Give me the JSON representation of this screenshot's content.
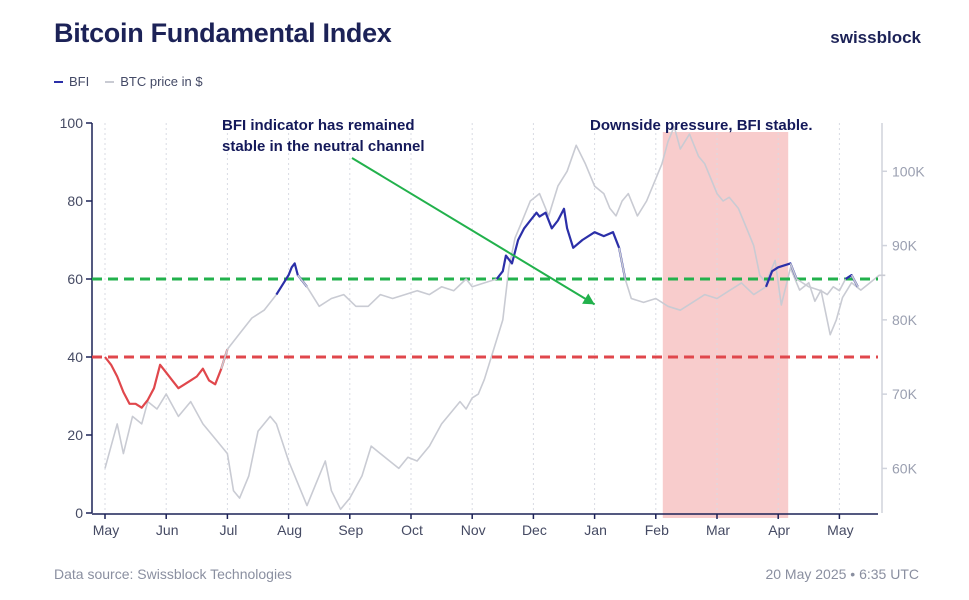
{
  "header": {
    "title": "Bitcoin Fundamental Index",
    "brand": "swissblock"
  },
  "legend": [
    {
      "label": "BFI",
      "color": "#2b2fa8"
    },
    {
      "label": "BTC price in $",
      "color": "#c9cbd3"
    }
  ],
  "footer": {
    "source": "Data source: Swissblock Technologies",
    "timestamp": "20 May 2025 • 6:35 UTC"
  },
  "colors": {
    "bfi_neutral": "#2b2fa8",
    "bfi_low": "#e0474c",
    "btc": "#c9cbd3",
    "upper_line": "#22b14c",
    "lower_line": "#e0474c",
    "shade": "#f7c3c3",
    "arrow": "#22b14c"
  },
  "chart_data": {
    "type": "line",
    "title": "Bitcoin Fundamental Index",
    "x_months": [
      "May",
      "Jun",
      "Jul",
      "Aug",
      "Sep",
      "Oct",
      "Nov",
      "Dec",
      "Jan",
      "Feb",
      "Mar",
      "Apr",
      "May"
    ],
    "x_range": [
      0,
      12.75
    ],
    "y_left": {
      "ticks": [
        0,
        20,
        40,
        60,
        80,
        100
      ],
      "range": [
        0,
        100
      ]
    },
    "y_right": {
      "ticks": [
        "60K",
        "70K",
        "80K",
        "90K",
        "100K"
      ],
      "tick_values": [
        60000,
        70000,
        80000,
        90000,
        100000
      ],
      "range": [
        54000,
        106500
      ]
    },
    "thresholds": [
      {
        "value": 60,
        "color": "#22b14c",
        "style": "dashed"
      },
      {
        "value": 40,
        "color": "#e0474c",
        "style": "dashed"
      }
    ],
    "shaded_region": {
      "x_start": 9.0,
      "x_end": 11.0,
      "label": "Downside pressure, BFI stable."
    },
    "annotations": [
      {
        "text_lines": [
          "BFI indicator has remained",
          "stable in the neutral channel"
        ],
        "arrow_from": [
          4.1,
          91
        ],
        "arrow_to": [
          8.0,
          53.5
        ]
      }
    ],
    "series": [
      {
        "name": "BFI",
        "axis": "left",
        "values": [
          [
            0.0,
            40
          ],
          [
            0.1,
            38
          ],
          [
            0.2,
            35
          ],
          [
            0.3,
            31
          ],
          [
            0.4,
            28
          ],
          [
            0.5,
            28
          ],
          [
            0.6,
            27
          ],
          [
            0.7,
            29
          ],
          [
            0.8,
            32
          ],
          [
            0.9,
            38
          ],
          [
            1.0,
            36
          ],
          [
            1.1,
            34
          ],
          [
            1.2,
            32
          ],
          [
            1.3,
            33
          ],
          [
            1.4,
            34
          ],
          [
            1.5,
            35
          ],
          [
            1.6,
            37
          ],
          [
            1.7,
            34
          ],
          [
            1.8,
            33
          ],
          [
            1.9,
            37
          ],
          [
            2.0,
            42
          ],
          [
            2.2,
            46
          ],
          [
            2.4,
            50
          ],
          [
            2.6,
            52
          ],
          [
            2.8,
            56
          ],
          [
            3.0,
            61
          ],
          [
            3.05,
            63
          ],
          [
            3.1,
            64
          ],
          [
            3.15,
            61
          ],
          [
            3.3,
            58
          ],
          [
            3.5,
            53
          ],
          [
            3.7,
            55
          ],
          [
            3.9,
            56
          ],
          [
            4.1,
            53
          ],
          [
            4.3,
            53
          ],
          [
            4.5,
            56
          ],
          [
            4.7,
            55
          ],
          [
            4.9,
            56
          ],
          [
            5.1,
            57
          ],
          [
            5.3,
            56
          ],
          [
            5.5,
            58
          ],
          [
            5.7,
            57
          ],
          [
            5.9,
            60
          ],
          [
            6.0,
            58
          ],
          [
            6.2,
            59
          ],
          [
            6.4,
            60
          ],
          [
            6.5,
            62
          ],
          [
            6.55,
            66
          ],
          [
            6.65,
            64
          ],
          [
            6.75,
            70
          ],
          [
            6.85,
            73
          ],
          [
            6.95,
            75
          ],
          [
            7.05,
            77
          ],
          [
            7.1,
            76
          ],
          [
            7.2,
            77
          ],
          [
            7.3,
            73
          ],
          [
            7.4,
            75
          ],
          [
            7.5,
            78
          ],
          [
            7.55,
            73
          ],
          [
            7.65,
            68
          ],
          [
            7.8,
            70
          ],
          [
            8.0,
            72
          ],
          [
            8.15,
            71
          ],
          [
            8.3,
            72
          ],
          [
            8.4,
            68
          ],
          [
            8.5,
            60
          ],
          [
            8.6,
            55
          ],
          [
            8.8,
            54
          ],
          [
            9.0,
            55
          ],
          [
            9.2,
            53
          ],
          [
            9.4,
            52
          ],
          [
            9.6,
            54
          ],
          [
            9.8,
            56
          ],
          [
            10.0,
            55
          ],
          [
            10.2,
            57
          ],
          [
            10.4,
            59
          ],
          [
            10.6,
            56
          ],
          [
            10.8,
            58
          ],
          [
            10.9,
            62
          ],
          [
            11.0,
            63
          ],
          [
            11.2,
            64
          ],
          [
            11.3,
            60
          ],
          [
            11.5,
            58
          ],
          [
            11.7,
            57
          ],
          [
            11.8,
            56
          ],
          [
            11.9,
            58
          ],
          [
            12.0,
            57
          ],
          [
            12.1,
            60
          ],
          [
            12.2,
            61
          ],
          [
            12.3,
            58
          ]
        ]
      },
      {
        "name": "BTC price in $",
        "axis": "right",
        "values": [
          [
            0.0,
            60000
          ],
          [
            0.1,
            63000
          ],
          [
            0.2,
            66000
          ],
          [
            0.3,
            62000
          ],
          [
            0.45,
            67000
          ],
          [
            0.6,
            66000
          ],
          [
            0.7,
            69000
          ],
          [
            0.85,
            68000
          ],
          [
            1.0,
            70000
          ],
          [
            1.2,
            67000
          ],
          [
            1.4,
            69000
          ],
          [
            1.6,
            66000
          ],
          [
            1.8,
            64000
          ],
          [
            2.0,
            62000
          ],
          [
            2.1,
            57000
          ],
          [
            2.2,
            56000
          ],
          [
            2.35,
            59000
          ],
          [
            2.5,
            65000
          ],
          [
            2.7,
            67000
          ],
          [
            2.8,
            66000
          ],
          [
            3.0,
            61000
          ],
          [
            3.15,
            58000
          ],
          [
            3.3,
            55000
          ],
          [
            3.45,
            58000
          ],
          [
            3.6,
            61000
          ],
          [
            3.7,
            57000
          ],
          [
            3.85,
            54500
          ],
          [
            4.0,
            56000
          ],
          [
            4.2,
            59000
          ],
          [
            4.35,
            63000
          ],
          [
            4.5,
            62000
          ],
          [
            4.65,
            61000
          ],
          [
            4.8,
            60000
          ],
          [
            4.95,
            61500
          ],
          [
            5.1,
            61000
          ],
          [
            5.3,
            63000
          ],
          [
            5.5,
            66000
          ],
          [
            5.65,
            67500
          ],
          [
            5.8,
            69000
          ],
          [
            5.9,
            68000
          ],
          [
            6.0,
            69500
          ],
          [
            6.1,
            70000
          ],
          [
            6.2,
            72000
          ],
          [
            6.35,
            76000
          ],
          [
            6.5,
            80000
          ],
          [
            6.6,
            87000
          ],
          [
            6.7,
            91000
          ],
          [
            6.8,
            93000
          ],
          [
            6.95,
            96000
          ],
          [
            7.1,
            97000
          ],
          [
            7.25,
            94000
          ],
          [
            7.4,
            98000
          ],
          [
            7.55,
            100000
          ],
          [
            7.7,
            103500
          ],
          [
            7.85,
            101000
          ],
          [
            8.0,
            98000
          ],
          [
            8.15,
            97000
          ],
          [
            8.25,
            95000
          ],
          [
            8.35,
            94000
          ],
          [
            8.45,
            96000
          ],
          [
            8.55,
            97000
          ],
          [
            8.7,
            94000
          ],
          [
            8.85,
            96000
          ],
          [
            9.0,
            99000
          ],
          [
            9.1,
            101000
          ],
          [
            9.2,
            104000
          ],
          [
            9.3,
            106000
          ],
          [
            9.4,
            103000
          ],
          [
            9.55,
            105000
          ],
          [
            9.7,
            102000
          ],
          [
            9.8,
            101000
          ],
          [
            9.9,
            99000
          ],
          [
            10.0,
            97000
          ],
          [
            10.1,
            96000
          ],
          [
            10.2,
            96500
          ],
          [
            10.35,
            95000
          ],
          [
            10.5,
            92000
          ],
          [
            10.6,
            90000
          ],
          [
            10.7,
            86000
          ],
          [
            10.8,
            85000
          ],
          [
            10.95,
            88000
          ],
          [
            11.05,
            82000
          ],
          [
            11.2,
            87000
          ],
          [
            11.35,
            84000
          ],
          [
            11.5,
            85000
          ],
          [
            11.6,
            82500
          ],
          [
            11.7,
            84000
          ],
          [
            11.85,
            78000
          ],
          [
            11.95,
            80000
          ],
          [
            12.05,
            83000
          ],
          [
            12.2,
            85000
          ],
          [
            12.35,
            84000
          ],
          [
            12.5,
            85000
          ],
          [
            12.65,
            86000
          ],
          [
            12.75,
            86000
          ]
        ]
      }
    ]
  }
}
